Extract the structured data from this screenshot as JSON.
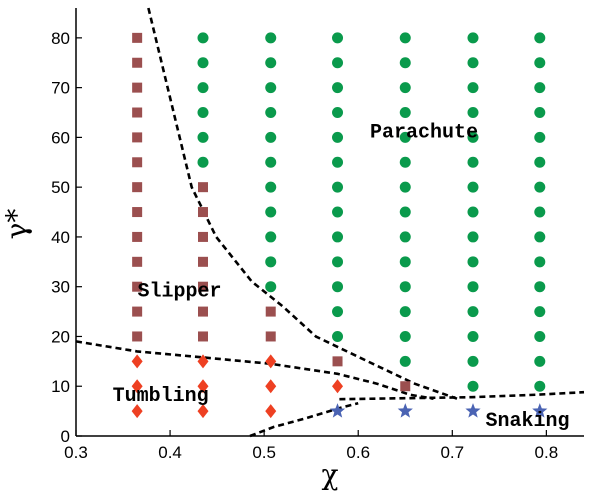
{
  "chart_data": {
    "type": "scatter",
    "title": "",
    "xlabel": "χ",
    "ylabel": "γ*",
    "xlim": [
      0.3,
      0.84
    ],
    "ylim": [
      0,
      86
    ],
    "xticks": [
      "0.3",
      "0.4",
      "0.5",
      "0.6",
      "0.7",
      "0.8"
    ],
    "yticks": [
      "0",
      "10",
      "20",
      "30",
      "40",
      "50",
      "60",
      "70",
      "80"
    ],
    "grid": false,
    "colors": {
      "parachute": "#0a9a4c",
      "slipper": "#9b4f4f",
      "tumbling": "#ee4022",
      "snaking": "#4a63b3",
      "boundary": "#000000"
    },
    "regions": [
      {
        "name": "Parachute",
        "x": 0.67,
        "y": 60
      },
      {
        "name": "Slipper",
        "x": 0.41,
        "y": 28
      },
      {
        "name": "Tumbling",
        "x": 0.39,
        "y": 7
      },
      {
        "name": "Snaking",
        "x": 0.78,
        "y": 2
      }
    ],
    "series": [
      {
        "key": "slipper",
        "marker": "square",
        "points": [
          [
            0.365,
            20
          ],
          [
            0.365,
            25
          ],
          [
            0.365,
            30
          ],
          [
            0.365,
            35
          ],
          [
            0.365,
            40
          ],
          [
            0.365,
            45
          ],
          [
            0.365,
            50
          ],
          [
            0.365,
            55
          ],
          [
            0.365,
            60
          ],
          [
            0.365,
            65
          ],
          [
            0.365,
            70
          ],
          [
            0.365,
            75
          ],
          [
            0.365,
            80
          ],
          [
            0.435,
            20
          ],
          [
            0.435,
            25
          ],
          [
            0.435,
            30
          ],
          [
            0.435,
            35
          ],
          [
            0.435,
            40
          ],
          [
            0.435,
            45
          ],
          [
            0.435,
            50
          ],
          [
            0.507,
            20
          ],
          [
            0.507,
            25
          ],
          [
            0.578,
            15
          ],
          [
            0.65,
            10
          ]
        ]
      },
      {
        "key": "parachute",
        "marker": "circle",
        "points": [
          [
            0.435,
            55
          ],
          [
            0.435,
            60
          ],
          [
            0.435,
            65
          ],
          [
            0.435,
            70
          ],
          [
            0.435,
            75
          ],
          [
            0.435,
            80
          ],
          [
            0.507,
            30
          ],
          [
            0.507,
            35
          ],
          [
            0.507,
            40
          ],
          [
            0.507,
            45
          ],
          [
            0.507,
            50
          ],
          [
            0.507,
            55
          ],
          [
            0.507,
            60
          ],
          [
            0.507,
            65
          ],
          [
            0.507,
            70
          ],
          [
            0.507,
            75
          ],
          [
            0.507,
            80
          ],
          [
            0.578,
            20
          ],
          [
            0.578,
            25
          ],
          [
            0.578,
            30
          ],
          [
            0.578,
            35
          ],
          [
            0.578,
            40
          ],
          [
            0.578,
            45
          ],
          [
            0.578,
            50
          ],
          [
            0.578,
            55
          ],
          [
            0.578,
            60
          ],
          [
            0.578,
            65
          ],
          [
            0.578,
            70
          ],
          [
            0.578,
            75
          ],
          [
            0.578,
            80
          ],
          [
            0.65,
            15
          ],
          [
            0.65,
            20
          ],
          [
            0.65,
            25
          ],
          [
            0.65,
            30
          ],
          [
            0.65,
            35
          ],
          [
            0.65,
            40
          ],
          [
            0.65,
            45
          ],
          [
            0.65,
            50
          ],
          [
            0.65,
            55
          ],
          [
            0.65,
            60
          ],
          [
            0.65,
            65
          ],
          [
            0.65,
            70
          ],
          [
            0.65,
            75
          ],
          [
            0.65,
            80
          ],
          [
            0.722,
            10
          ],
          [
            0.722,
            15
          ],
          [
            0.722,
            20
          ],
          [
            0.722,
            25
          ],
          [
            0.722,
            30
          ],
          [
            0.722,
            35
          ],
          [
            0.722,
            40
          ],
          [
            0.722,
            45
          ],
          [
            0.722,
            50
          ],
          [
            0.722,
            55
          ],
          [
            0.722,
            60
          ],
          [
            0.722,
            65
          ],
          [
            0.722,
            70
          ],
          [
            0.722,
            75
          ],
          [
            0.722,
            80
          ],
          [
            0.793,
            10
          ],
          [
            0.793,
            15
          ],
          [
            0.793,
            20
          ],
          [
            0.793,
            25
          ],
          [
            0.793,
            30
          ],
          [
            0.793,
            35
          ],
          [
            0.793,
            40
          ],
          [
            0.793,
            45
          ],
          [
            0.793,
            50
          ],
          [
            0.793,
            55
          ],
          [
            0.793,
            60
          ],
          [
            0.793,
            65
          ],
          [
            0.793,
            70
          ],
          [
            0.793,
            75
          ],
          [
            0.793,
            80
          ]
        ]
      },
      {
        "key": "tumbling",
        "marker": "diamond",
        "points": [
          [
            0.365,
            5
          ],
          [
            0.365,
            10
          ],
          [
            0.365,
            15
          ],
          [
            0.435,
            5
          ],
          [
            0.435,
            10
          ],
          [
            0.435,
            15
          ],
          [
            0.507,
            5
          ],
          [
            0.507,
            10
          ],
          [
            0.507,
            15
          ],
          [
            0.578,
            10
          ]
        ]
      },
      {
        "key": "snaking",
        "marker": "star",
        "points": [
          [
            0.578,
            5
          ],
          [
            0.65,
            5
          ],
          [
            0.722,
            5
          ],
          [
            0.793,
            5
          ]
        ]
      }
    ],
    "boundaries": [
      {
        "name": "slipper-parachute",
        "points": [
          [
            0.377,
            86
          ],
          [
            0.423,
            50
          ],
          [
            0.449,
            40
          ],
          [
            0.487,
            31
          ],
          [
            0.52,
            26
          ],
          [
            0.555,
            20
          ],
          [
            0.61,
            15
          ],
          [
            0.66,
            10.5
          ],
          [
            0.705,
            7.5
          ]
        ]
      },
      {
        "name": "tumbling-upper",
        "points": [
          [
            0.3,
            19
          ],
          [
            0.365,
            17
          ],
          [
            0.435,
            15.8
          ],
          [
            0.507,
            14.5
          ],
          [
            0.578,
            12.5
          ],
          [
            0.62,
            10.5
          ],
          [
            0.655,
            8.3
          ],
          [
            0.68,
            7.5
          ]
        ]
      },
      {
        "name": "snaking-upper",
        "points": [
          [
            0.58,
            7.4
          ],
          [
            0.65,
            7.6
          ],
          [
            0.72,
            7.8
          ],
          [
            0.79,
            8.3
          ],
          [
            0.84,
            8.8
          ]
        ]
      },
      {
        "name": "snaking-lower",
        "points": [
          [
            0.485,
            0
          ],
          [
            0.51,
            1.8
          ],
          [
            0.545,
            3.6
          ],
          [
            0.58,
            5.6
          ],
          [
            0.6,
            6.6
          ]
        ]
      }
    ]
  }
}
